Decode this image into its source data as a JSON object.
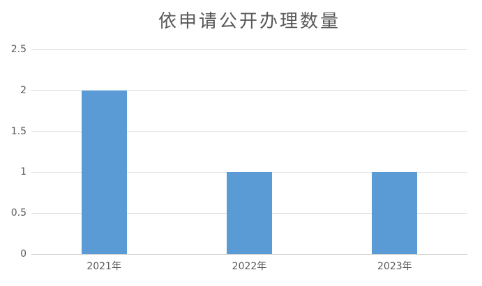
{
  "chart": {
    "colors": {
      "bar": "#5B9BD5",
      "gridline": "#D9D9D9",
      "axis_line": "#CCCCCC",
      "text": "#595959",
      "background": "#FFFFFF"
    }
  },
  "chart_data": {
    "type": "bar",
    "title": "依申请公开办理数量",
    "categories": [
      "2021年",
      "2022年",
      "2023年"
    ],
    "values": [
      2,
      1,
      1
    ],
    "xlabel": "",
    "ylabel": "",
    "ylim": [
      0,
      2.5
    ],
    "yticks": [
      0,
      0.5,
      1,
      1.5,
      2,
      2.5
    ],
    "grid": "horizontal-on",
    "legend": "none"
  }
}
